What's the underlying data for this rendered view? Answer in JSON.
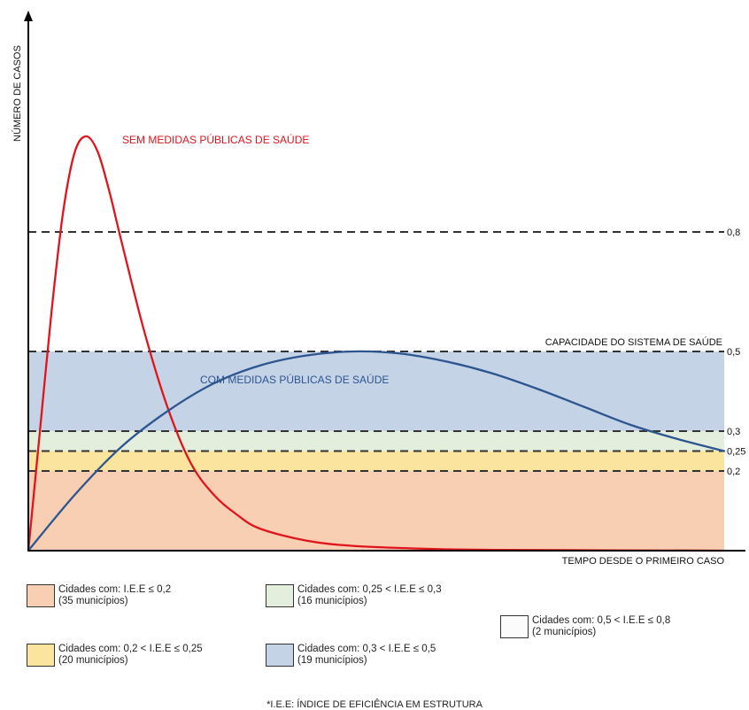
{
  "chart_data": {
    "type": "line",
    "title": "",
    "xlabel": "TEMPO DESDE O PRIMEIRO CASO",
    "ylabel": "NÚMERO DE CASOS",
    "ylim": [
      0,
      1.05
    ],
    "grid": false,
    "series": [
      {
        "name": "SEM MEDIDAS PÚBLICAS DE SAÚDE",
        "color": "#e0141c",
        "points": [
          [
            0,
            0
          ],
          [
            0.5,
            0.3
          ],
          [
            1,
            0.6
          ],
          [
            1.5,
            0.85
          ],
          [
            2,
            1.0
          ],
          [
            2.5,
            1.04
          ],
          [
            3,
            1.0
          ],
          [
            3.5,
            0.9
          ],
          [
            4,
            0.78
          ],
          [
            5,
            0.55
          ],
          [
            6,
            0.36
          ],
          [
            7,
            0.22
          ],
          [
            8,
            0.14
          ],
          [
            9,
            0.09
          ],
          [
            10,
            0.055
          ],
          [
            12,
            0.025
          ],
          [
            14,
            0.012
          ],
          [
            17,
            0.005
          ],
          [
            20,
            0.002
          ],
          [
            30,
            0.0
          ]
        ]
      },
      {
        "name": "COM MEDIDAS PÚBLICAS DE SAÚDE",
        "color": "#2d5590",
        "points": [
          [
            0,
            0
          ],
          [
            2,
            0.14
          ],
          [
            4,
            0.26
          ],
          [
            6,
            0.35
          ],
          [
            8,
            0.42
          ],
          [
            10,
            0.465
          ],
          [
            12,
            0.49
          ],
          [
            14,
            0.5
          ],
          [
            16,
            0.495
          ],
          [
            18,
            0.475
          ],
          [
            20,
            0.445
          ],
          [
            22,
            0.405
          ],
          [
            24,
            0.36
          ],
          [
            26,
            0.315
          ],
          [
            28,
            0.28
          ],
          [
            30,
            0.25
          ]
        ]
      }
    ],
    "thresholds": [
      {
        "value": 0.8,
        "label": "0,8"
      },
      {
        "value": 0.5,
        "label": "0,5",
        "annotation": "CAPACIDADE DO SISTEMA DE SAÚDE"
      },
      {
        "value": 0.3,
        "label": "0,3"
      },
      {
        "value": 0.25,
        "label": "0,25"
      },
      {
        "value": 0.2,
        "label": "0,2"
      }
    ],
    "bands": [
      {
        "from": 0,
        "to": 0.2,
        "color": "#f8cfb3"
      },
      {
        "from": 0.2,
        "to": 0.25,
        "color": "#fbe49e"
      },
      {
        "from": 0.25,
        "to": 0.3,
        "color": "#e3efdc"
      },
      {
        "from": 0.3,
        "to": 0.5,
        "color": "#c4d3e6"
      }
    ]
  },
  "legend": [
    {
      "color": "#f8cfb3",
      "line1": "Cidades com: I.E.E ≤ 0,2",
      "line2": "(35 municípios)"
    },
    {
      "color": "#e3efdc",
      "line1": "Cidades com: 0,25 < I.E.E ≤ 0,3",
      "line2": "(16  municípios)"
    },
    {
      "color": "#fbfbfb",
      "line1": "Cidades com: 0,5 < I.E.E ≤ 0,8",
      "line2": "(2 municípios)"
    },
    {
      "color": "#fbe49e",
      "line1": "Cidades com: 0,2 < I.E.E ≤ 0,25",
      "line2": "(20 municípios)"
    },
    {
      "color": "#c4d3e6",
      "line1": "Cidades com: 0,3 < I.E.E ≤ 0,5",
      "line2": "(19 municípios)"
    }
  ],
  "footnote": "*I.E.E: ÍNDICE DE EFICIÊNCIA EM ESTRUTURA"
}
